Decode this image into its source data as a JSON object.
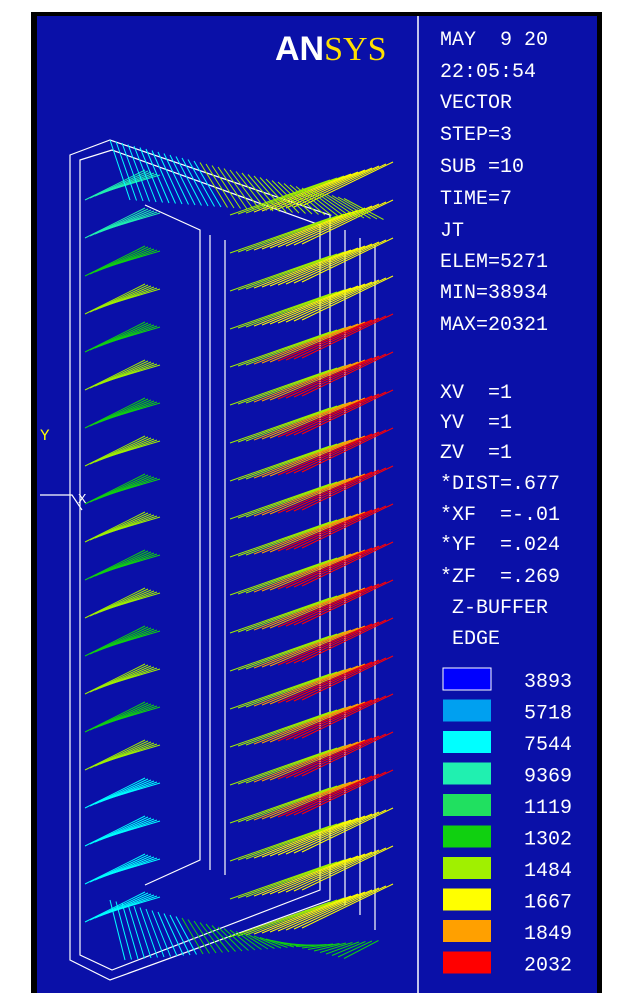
{
  "logo": {
    "an": "AN",
    "sys": "SYS"
  },
  "info": [
    "MAY  9 20",
    "22:05:54",
    "VECTOR",
    "STEP=3",
    "SUB =10",
    "TIME=7",
    "JT",
    "ELEM=5271",
    "MIN=38934",
    "MAX=20321",
    "XV  =1",
    "YV  =1",
    "ZV  =1",
    "*DIST=.677",
    "*XF  =-.01",
    "*YF  =.024",
    "*ZF  =.269",
    " Z-BUFFER",
    " EDGE"
  ],
  "legend": [
    {
      "label": "3893",
      "color": "#0000ff"
    },
    {
      "label": "5718",
      "color": "#00a0f0"
    },
    {
      "label": "7544",
      "color": "#00ffff"
    },
    {
      "label": "9369",
      "color": "#20f0b0"
    },
    {
      "label": "1119",
      "color": "#20e060"
    },
    {
      "label": "1302",
      "color": "#10d010"
    },
    {
      "label": "1484",
      "color": "#a0f000"
    },
    {
      "label": "1667",
      "color": "#ffff00"
    },
    {
      "label": "1849",
      "color": "#ffa000"
    },
    {
      "label": "2032",
      "color": "#ff0000"
    }
  ],
  "axes": {
    "y": "Y",
    "x": "X"
  }
}
